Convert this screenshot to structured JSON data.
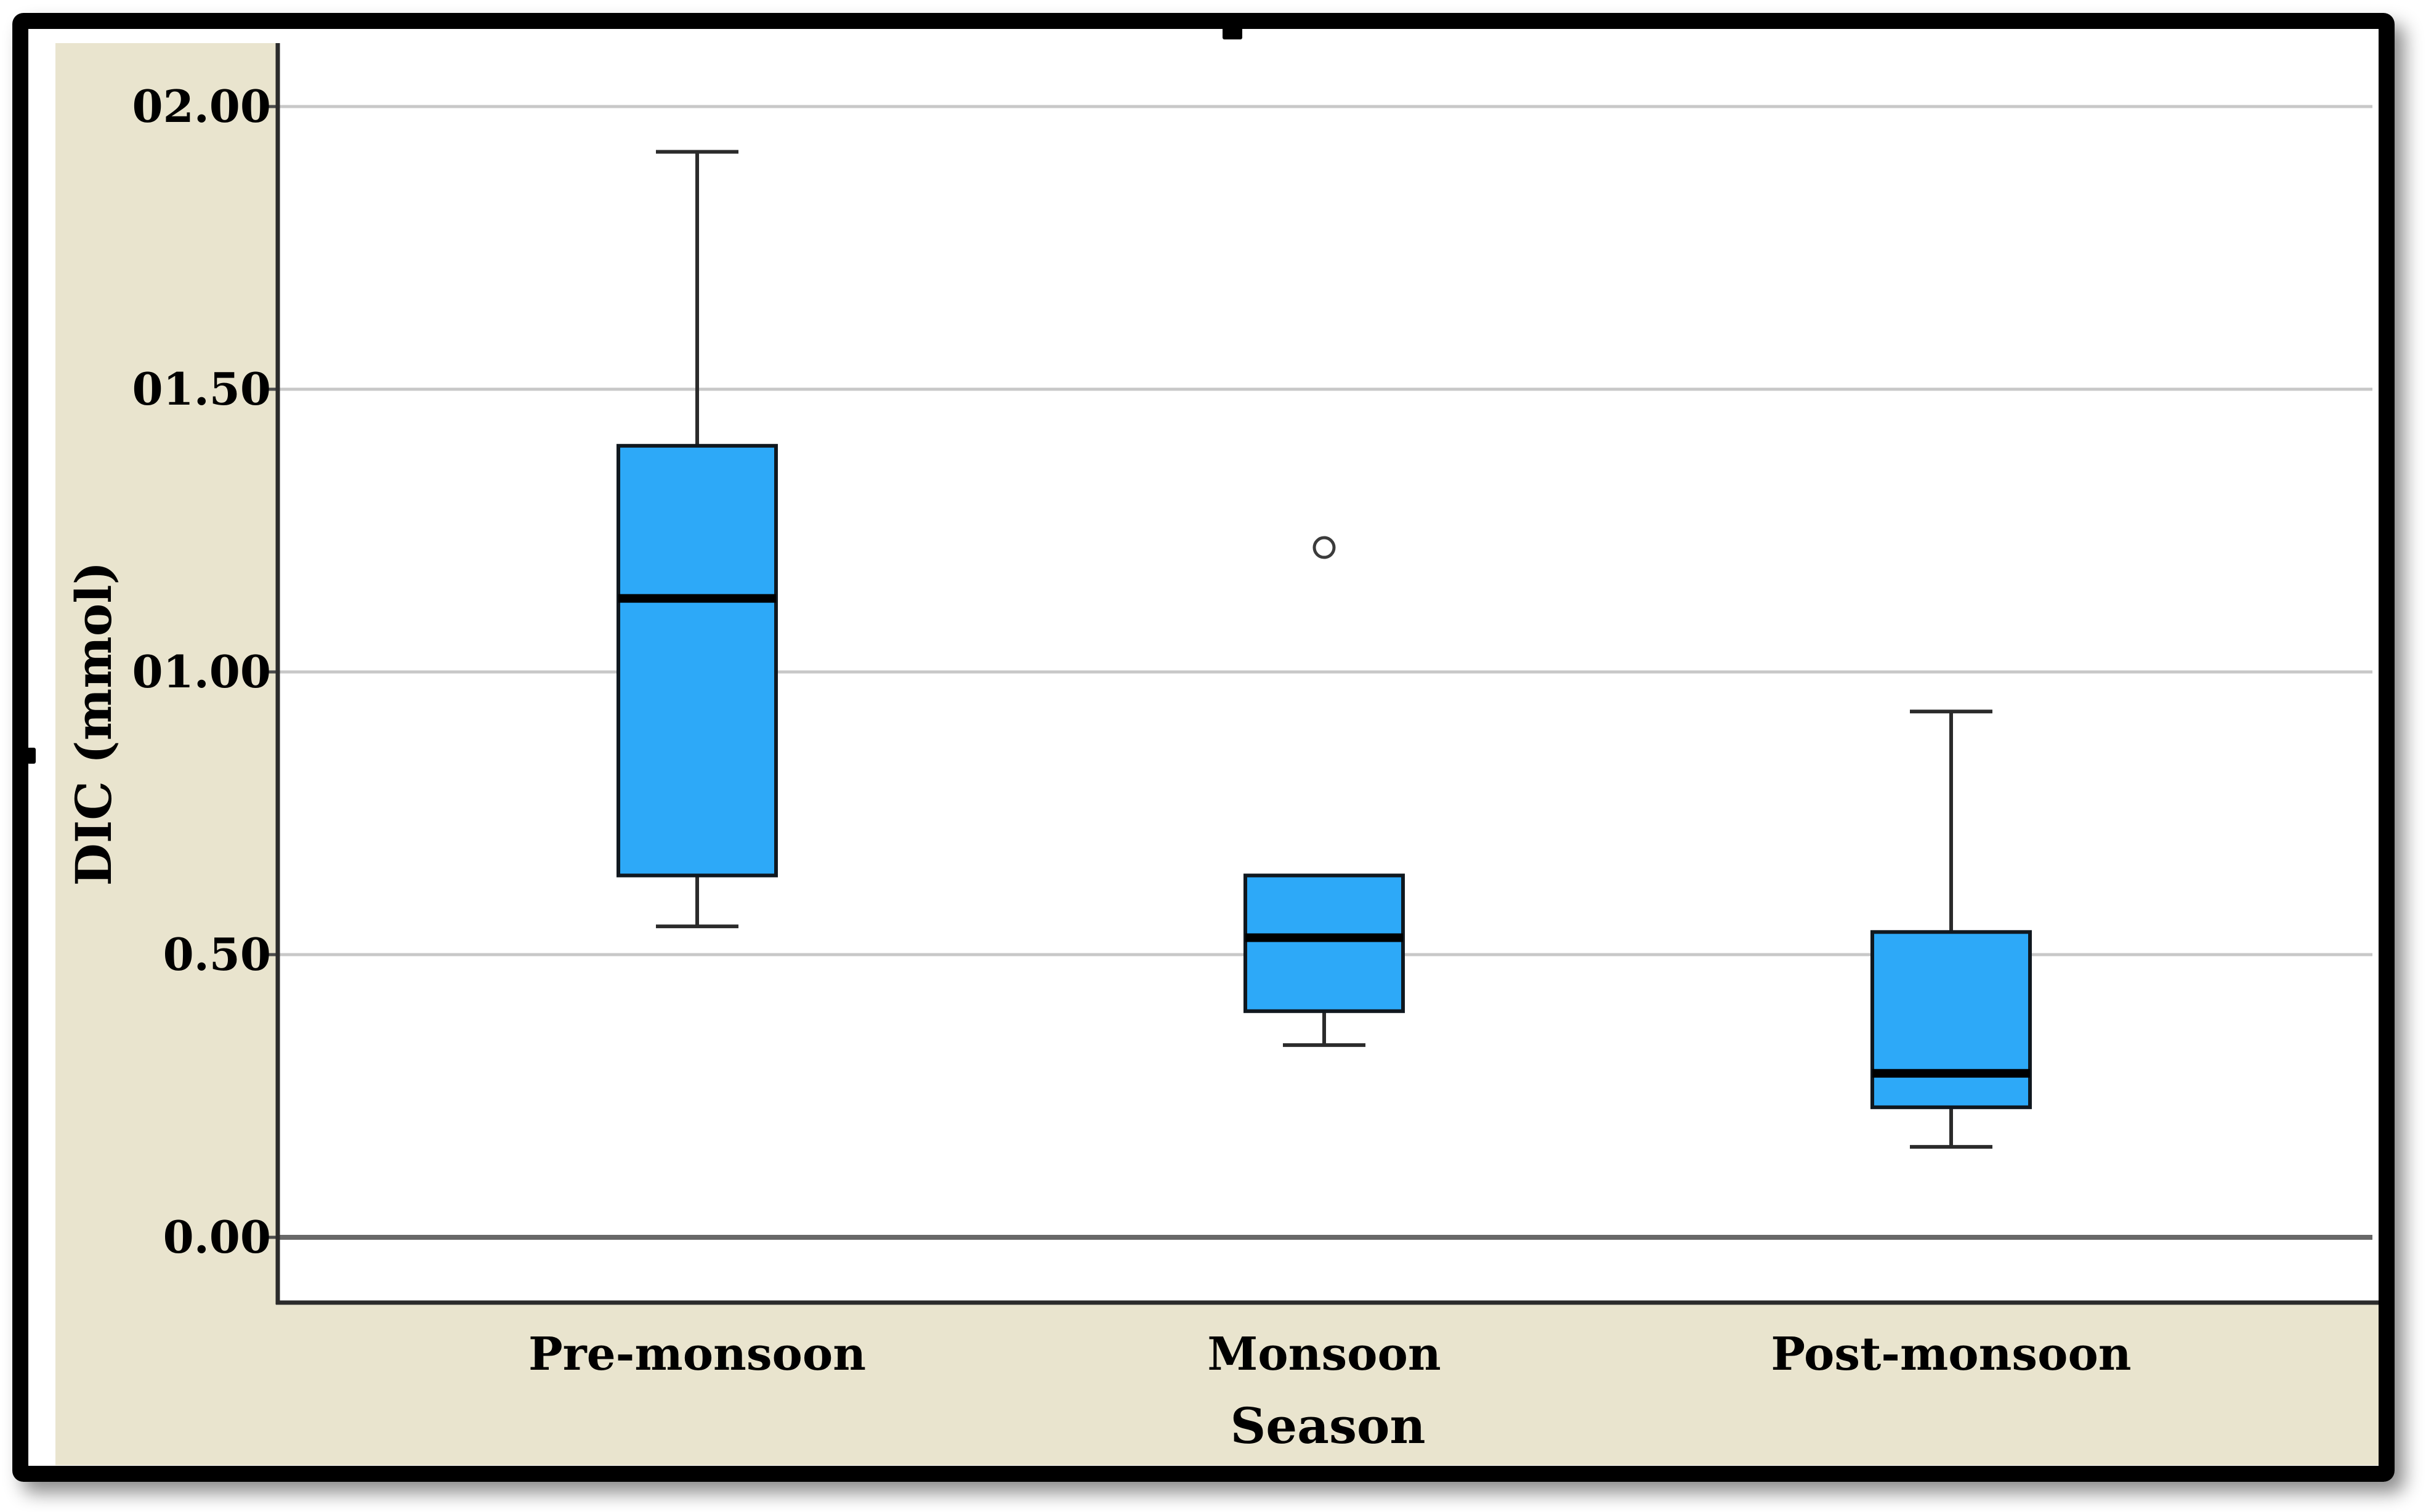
{
  "figure": {
    "kind": "boxplot-figure",
    "background_panel_color": "#e9e4ce",
    "plot_background_color": "#ffffff"
  },
  "chart_data": {
    "type": "boxplot",
    "title": "",
    "xlabel": "Season",
    "ylabel": "DIC (mmol)",
    "categories": [
      "Pre-monsoon",
      "Monsoon",
      "Post-monsoon"
    ],
    "ylim": [
      0,
      2.11
    ],
    "grid": true,
    "legend": "none",
    "yticks": [
      {
        "label": "02.00",
        "value": 2.0
      },
      {
        "label": "01.50",
        "value": 1.5
      },
      {
        "label": "01.00",
        "value": 1.0
      },
      {
        "label": "0.50",
        "value": 0.5
      },
      {
        "label": "0.00",
        "value": 0.0
      }
    ],
    "boxes": [
      {
        "category": "Pre-monsoon",
        "whisker_low": 0.55,
        "q1": 0.64,
        "median": 1.13,
        "q3": 1.4,
        "whisker_high": 1.92,
        "outliers": []
      },
      {
        "category": "Monsoon",
        "whisker_low": 0.34,
        "q1": 0.4,
        "median": 0.53,
        "q3": 0.64,
        "whisker_high": 0.64,
        "outliers": [
          1.22
        ]
      },
      {
        "category": "Post-monsoon",
        "whisker_low": 0.16,
        "q1": 0.23,
        "median": 0.29,
        "q3": 0.54,
        "whisker_high": 0.93,
        "outliers": []
      }
    ]
  },
  "colors": {
    "box_fill": "#2da9f8",
    "box_border": "#10181f",
    "median_line": "#000000",
    "whisker": "#2b2b2b",
    "outlier_stroke": "#3b3b3b",
    "gridline": "#c8c8c8",
    "zero_line": "#686868",
    "axis_line": "#2b2b2b",
    "tick_mark": "#4a4a4a",
    "frame": "#000000",
    "panel": "#e9e4ce",
    "text": "#000000"
  }
}
